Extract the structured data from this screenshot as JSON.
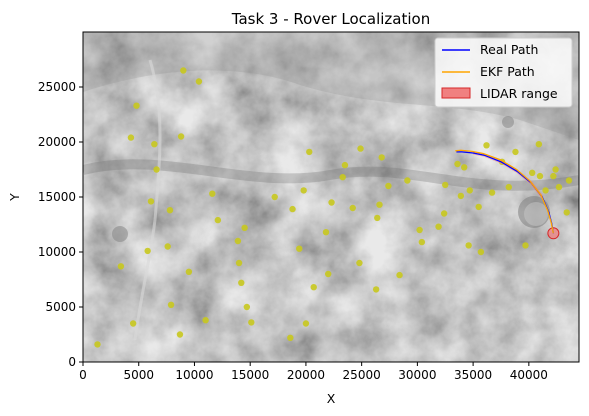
{
  "chart_data": {
    "type": "scatter",
    "title": "Task 3 - Rover Localization",
    "xlabel": "X",
    "ylabel": "Y",
    "xlim": [
      0,
      44500
    ],
    "ylim": [
      0,
      30000
    ],
    "xticks": [
      0,
      5000,
      10000,
      15000,
      20000,
      25000,
      30000,
      35000,
      40000
    ],
    "yticks": [
      0,
      5000,
      10000,
      15000,
      20000,
      25000
    ],
    "grid": false,
    "legend_position": "top-right",
    "background": "grayscale terrain map",
    "colors": {
      "real_path": "#0000ff",
      "ekf_path": "#ffa500",
      "lidar": "#f08080",
      "lidar_edge": "#d62728",
      "landmark": "#c8c81e"
    },
    "legend": [
      {
        "label": "Real Path",
        "kind": "line",
        "color": "#0000ff"
      },
      {
        "label": "EKF Path",
        "kind": "line",
        "color": "#ffa500"
      },
      {
        "label": "LIDAR range",
        "kind": "patch",
        "color": "#f08080"
      }
    ],
    "series": [
      {
        "name": "Real Path",
        "x": [
          42200,
          42050,
          41800,
          41200,
          40200,
          39000,
          37500,
          36000,
          35000,
          34000,
          33500
        ],
        "y": [
          11700,
          12600,
          13600,
          15000,
          16300,
          17300,
          18200,
          18800,
          19000,
          19100,
          19100
        ]
      },
      {
        "name": "EKF Path",
        "x": [
          42200,
          42000,
          41700,
          41100,
          40100,
          38900,
          37400,
          35900,
          34900,
          33900,
          33400
        ],
        "y": [
          11700,
          12700,
          13750,
          15150,
          16450,
          17500,
          18400,
          18950,
          19150,
          19250,
          19200
        ]
      }
    ],
    "lidar_position": {
      "x": 42200,
      "y": 11700
    },
    "landmarks": {
      "x": [
        1300,
        3400,
        4300,
        4500,
        4800,
        5800,
        6100,
        6400,
        6600,
        7600,
        7800,
        7900,
        8700,
        8800,
        9000,
        9500,
        10400,
        11000,
        11600,
        12100,
        13900,
        14000,
        14200,
        14500,
        14700,
        15100,
        17200,
        18600,
        18800,
        19400,
        19800,
        20000,
        20300,
        20700,
        21800,
        22000,
        22300,
        23300,
        23500,
        24200,
        24800,
        24900,
        26300,
        26400,
        26600,
        26800,
        27400,
        28400,
        29100,
        30200,
        30400,
        31900,
        32400,
        32500,
        33600,
        33900,
        34200,
        34600,
        34700,
        35500,
        35700,
        36200,
        36700,
        37600,
        38200,
        38800,
        39700,
        40300,
        40900,
        41000,
        41500,
        42200,
        42400,
        42700,
        43400,
        43600
      ],
      "y": [
        1600,
        8700,
        20400,
        3500,
        23300,
        10100,
        14600,
        19800,
        17500,
        10500,
        13800,
        5200,
        2500,
        20500,
        26500,
        8200,
        25500,
        3800,
        15300,
        12900,
        11000,
        9000,
        7200,
        12200,
        5000,
        3600,
        15000,
        2200,
        13900,
        10300,
        15600,
        3500,
        19100,
        6800,
        11800,
        8000,
        14500,
        16800,
        17900,
        14000,
        9000,
        19400,
        6600,
        13100,
        14300,
        18600,
        16000,
        7900,
        16500,
        12000,
        10900,
        12300,
        13500,
        16100,
        18000,
        15100,
        17700,
        10600,
        15600,
        14100,
        10000,
        19700,
        15400,
        18200,
        15900,
        19100,
        10600,
        17200,
        19800,
        16900,
        15600,
        16900,
        17500,
        15900,
        13600,
        16500
      ]
    }
  }
}
